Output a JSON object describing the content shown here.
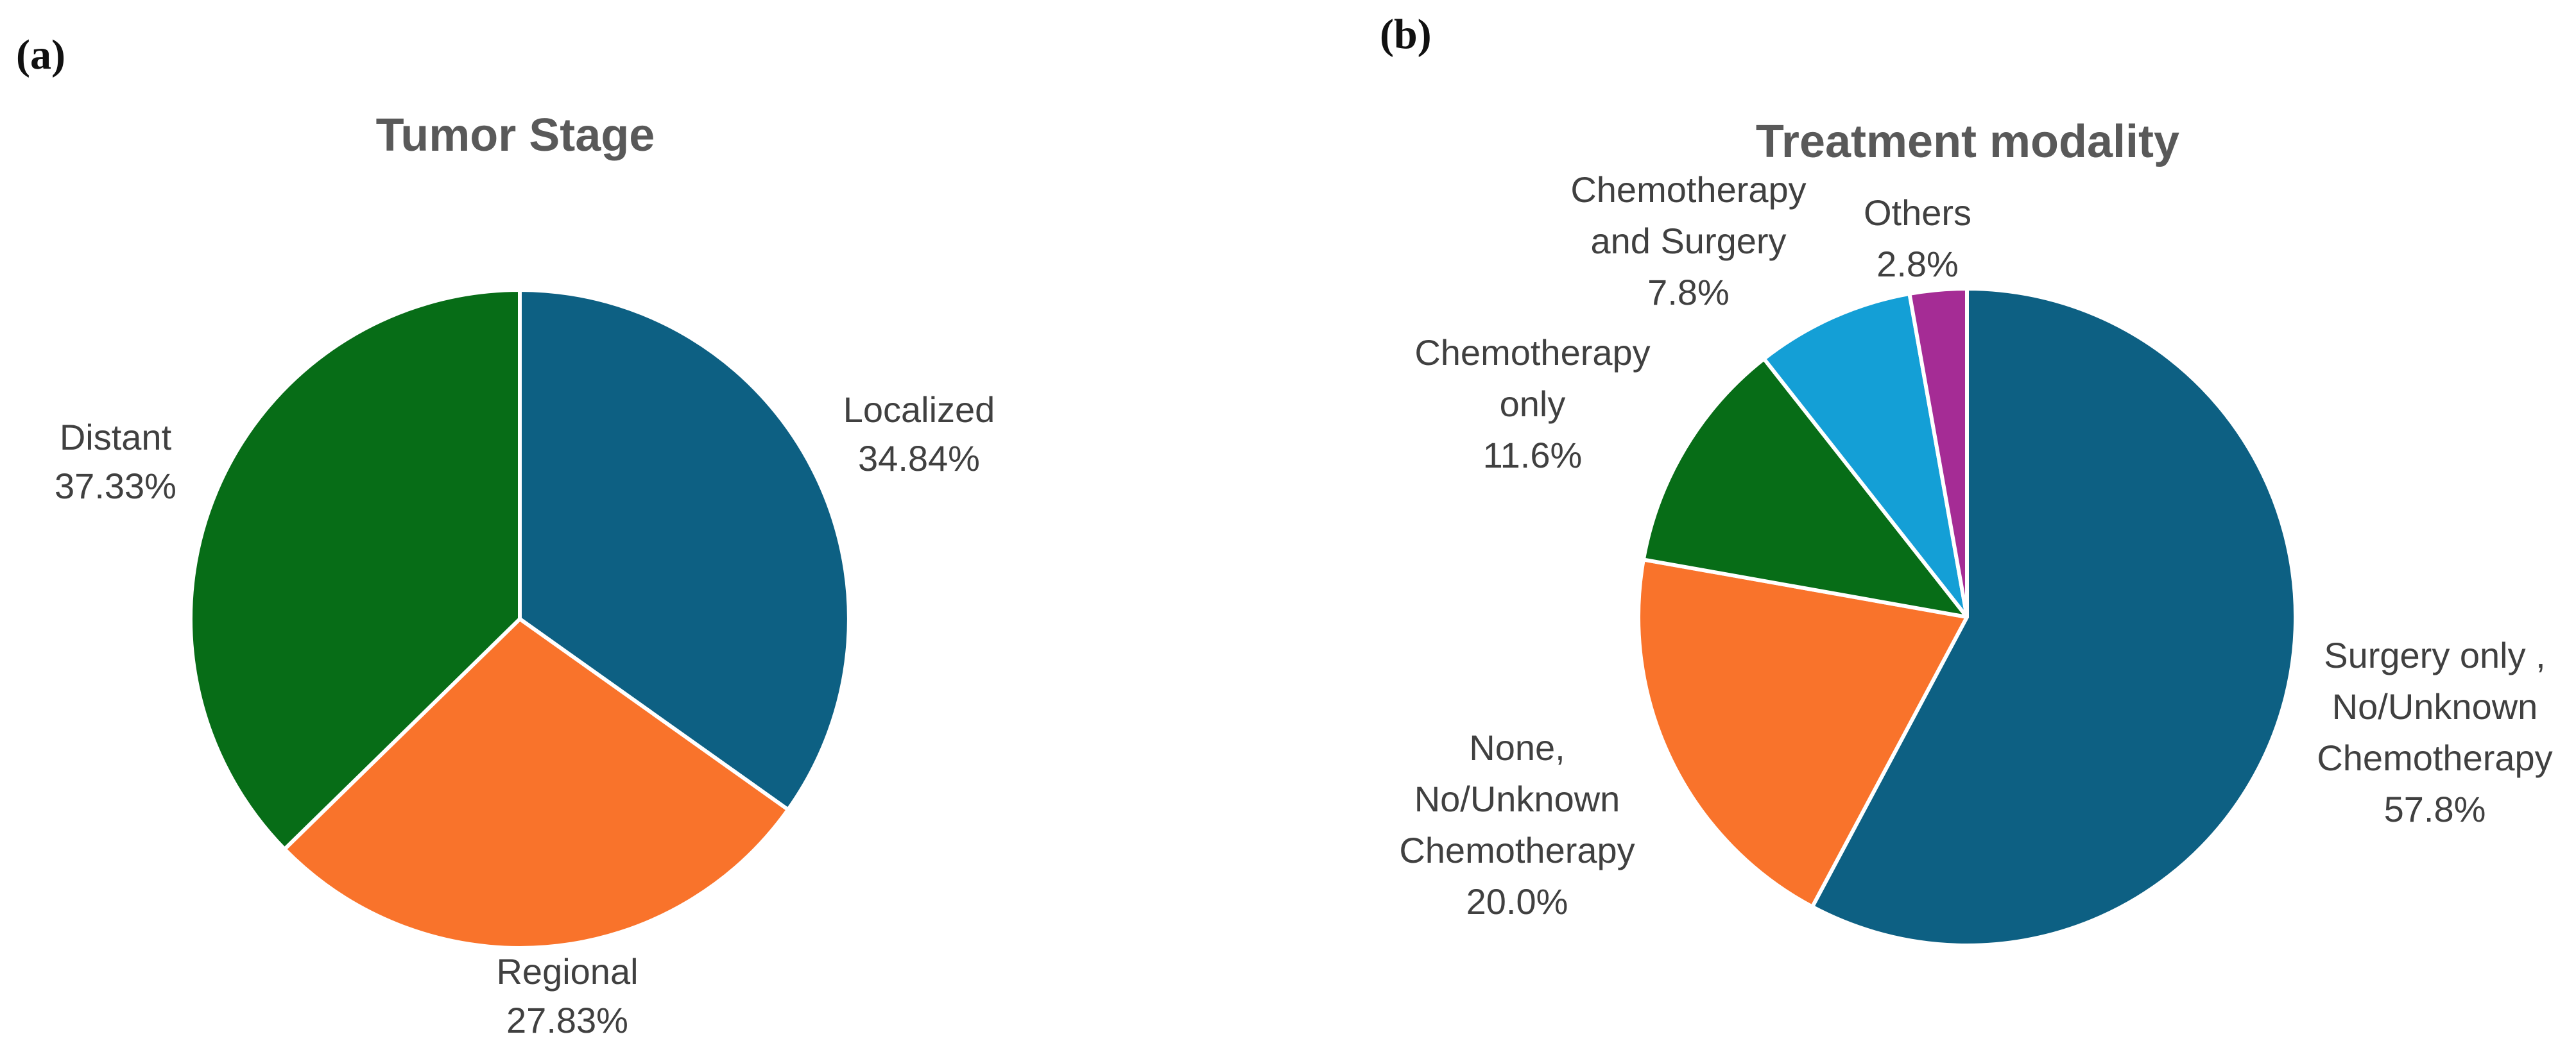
{
  "page": {
    "background": "#ffffff"
  },
  "panels": [
    {
      "label": "(a)"
    },
    {
      "label": "(b)"
    }
  ],
  "text_colors": {
    "title": "#595959",
    "label": "#404040",
    "panel_label": "#111111"
  },
  "chart_data": [
    {
      "type": "pie",
      "title": "Tumor Stage",
      "start_angle_deg": 0,
      "direction": "clockwise",
      "legend": "none",
      "slices": [
        {
          "name": "Localized",
          "value_pct": 34.84,
          "color": "#0D6083"
        },
        {
          "name": "Regional",
          "value_pct": 27.83,
          "color": "#F9732B"
        },
        {
          "name": "Distant",
          "value_pct": 37.33,
          "color": "#076D17"
        }
      ],
      "callouts": [
        {
          "lines": [
            "Localized",
            "34.84%"
          ]
        },
        {
          "lines": [
            "Distant",
            "37.33%"
          ]
        },
        {
          "lines": [
            "Regional",
            "27.83%"
          ]
        }
      ]
    },
    {
      "type": "pie",
      "title": "Treatment modality",
      "start_angle_deg": 0,
      "direction": "clockwise",
      "legend": "none",
      "slices": [
        {
          "name": "Surgery only , No/Unknown Chemotherapy",
          "value_pct": 57.8,
          "color": "#0D6083"
        },
        {
          "name": "None, No/Unknown Chemotherapy",
          "value_pct": 20.0,
          "color": "#F9732B"
        },
        {
          "name": "Chemotherapy only",
          "value_pct": 11.6,
          "color": "#076D17"
        },
        {
          "name": "Chemotherapy and Surgery",
          "value_pct": 7.8,
          "color": "#149FD6"
        },
        {
          "name": "Others",
          "value_pct": 2.8,
          "color": "#A52C95"
        }
      ],
      "callouts": [
        {
          "lines": [
            "Chemotherapy",
            "and Surgery",
            "7.8%"
          ]
        },
        {
          "lines": [
            "Others",
            "2.8%"
          ]
        },
        {
          "lines": [
            "Chemotherapy",
            "only",
            "11.6%"
          ]
        },
        {
          "lines": [
            "Surgery only ,",
            "No/Unknown",
            "Chemotherapy",
            "57.8%"
          ]
        },
        {
          "lines": [
            "None,",
            "No/Unknown",
            "Chemotherapy",
            "20.0%"
          ]
        }
      ]
    }
  ]
}
